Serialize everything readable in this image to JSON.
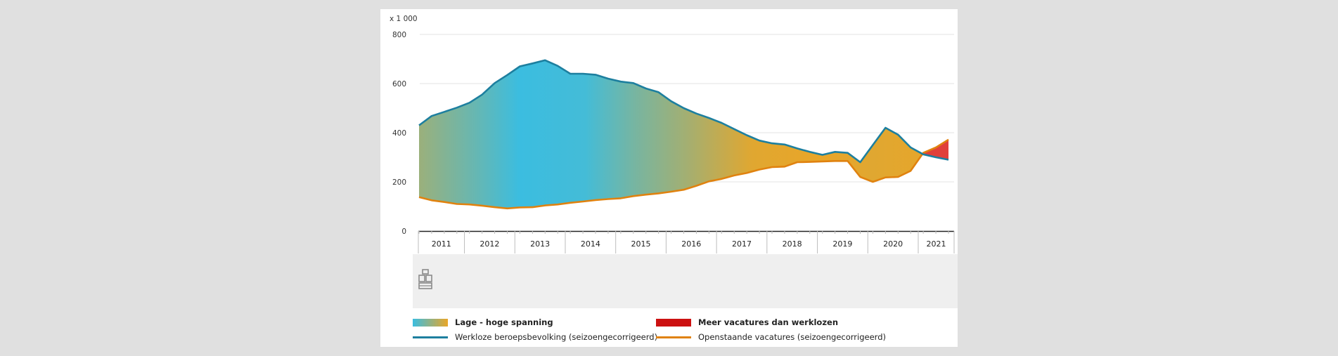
{
  "chart_data": {
    "type": "area",
    "unit_label": "x 1 000",
    "ylim": [
      0,
      800
    ],
    "yticks": [
      0,
      200,
      400,
      600,
      800
    ],
    "grid": true,
    "x_categories": [
      "2011",
      "2012",
      "2013",
      "2014",
      "2015",
      "2016",
      "2017",
      "2018",
      "2019",
      "2020",
      "2021"
    ],
    "x_start": 2011.0,
    "x_end": 2021.5,
    "series": [
      {
        "name": "Werkloze beroepsbevolking (seizoengecorrigeerd)",
        "color": "#1d7f9f",
        "points": [
          [
            2011.0,
            430
          ],
          [
            2011.25,
            468
          ],
          [
            2011.5,
            485
          ],
          [
            2011.75,
            502
          ],
          [
            2012.0,
            522
          ],
          [
            2012.25,
            555
          ],
          [
            2012.5,
            602
          ],
          [
            2012.75,
            635
          ],
          [
            2013.0,
            670
          ],
          [
            2013.25,
            682
          ],
          [
            2013.5,
            695
          ],
          [
            2013.75,
            672
          ],
          [
            2014.0,
            640
          ],
          [
            2014.25,
            640
          ],
          [
            2014.5,
            636
          ],
          [
            2014.75,
            620
          ],
          [
            2015.0,
            608
          ],
          [
            2015.25,
            602
          ],
          [
            2015.5,
            580
          ],
          [
            2015.75,
            565
          ],
          [
            2016.0,
            528
          ],
          [
            2016.25,
            500
          ],
          [
            2016.5,
            478
          ],
          [
            2016.75,
            460
          ],
          [
            2017.0,
            440
          ],
          [
            2017.25,
            415
          ],
          [
            2017.5,
            390
          ],
          [
            2017.75,
            368
          ],
          [
            2018.0,
            357
          ],
          [
            2018.25,
            352
          ],
          [
            2018.5,
            336
          ],
          [
            2018.75,
            322
          ],
          [
            2019.0,
            310
          ],
          [
            2019.25,
            322
          ],
          [
            2019.5,
            318
          ],
          [
            2019.75,
            280
          ],
          [
            2020.0,
            350
          ],
          [
            2020.25,
            420
          ],
          [
            2020.5,
            392
          ],
          [
            2020.75,
            340
          ],
          [
            2021.0,
            312
          ],
          [
            2021.25,
            300
          ],
          [
            2021.5,
            290
          ]
        ]
      },
      {
        "name": "Openstaande vacatures (seizoengecorrigeerd)",
        "color": "#e0820f",
        "points": [
          [
            2011.0,
            138
          ],
          [
            2011.25,
            125
          ],
          [
            2011.5,
            118
          ],
          [
            2011.75,
            110
          ],
          [
            2012.0,
            108
          ],
          [
            2012.25,
            103
          ],
          [
            2012.5,
            97
          ],
          [
            2012.75,
            92
          ],
          [
            2013.0,
            96
          ],
          [
            2013.25,
            97
          ],
          [
            2013.5,
            104
          ],
          [
            2013.75,
            108
          ],
          [
            2014.0,
            115
          ],
          [
            2014.25,
            120
          ],
          [
            2014.5,
            126
          ],
          [
            2014.75,
            130
          ],
          [
            2015.0,
            133
          ],
          [
            2015.25,
            142
          ],
          [
            2015.5,
            148
          ],
          [
            2015.75,
            153
          ],
          [
            2016.0,
            160
          ],
          [
            2016.25,
            168
          ],
          [
            2016.5,
            184
          ],
          [
            2016.75,
            202
          ],
          [
            2017.0,
            212
          ],
          [
            2017.25,
            226
          ],
          [
            2017.5,
            236
          ],
          [
            2017.75,
            250
          ],
          [
            2018.0,
            260
          ],
          [
            2018.25,
            262
          ],
          [
            2018.5,
            280
          ],
          [
            2018.75,
            281
          ],
          [
            2019.0,
            283
          ],
          [
            2019.25,
            285
          ],
          [
            2019.5,
            285
          ],
          [
            2019.75,
            220
          ],
          [
            2020.0,
            200
          ],
          [
            2020.25,
            218
          ],
          [
            2020.5,
            220
          ],
          [
            2020.75,
            245
          ],
          [
            2021.0,
            318
          ],
          [
            2021.25,
            340
          ],
          [
            2021.5,
            372
          ]
        ]
      }
    ],
    "fill_gradient": {
      "low_color": "#3bbde0",
      "high_color": "#e9a628",
      "stops": [
        [
          2011.0,
          0.55
        ],
        [
          2012.3,
          0.2
        ],
        [
          2013.0,
          0.0
        ],
        [
          2014.3,
          0.05
        ],
        [
          2015.3,
          0.35
        ],
        [
          2016.3,
          0.6
        ],
        [
          2017.6,
          0.95
        ],
        [
          2019.0,
          1.0
        ],
        [
          2020.0,
          0.95
        ],
        [
          2021.5,
          1.0
        ]
      ],
      "reversed_color": "#e0403a"
    }
  },
  "legend": [
    {
      "label": "Lage - hoge spanning",
      "kind": "gradient",
      "bold": true
    },
    {
      "label": "Meer vacatures dan werklozen",
      "kind": "red",
      "color": "#cc1111",
      "bold": true
    },
    {
      "label": "Werkloze beroepsbevolking (seizoengecorrigeerd)",
      "kind": "line",
      "color": "#1d7f9f",
      "bold": false
    },
    {
      "label": "Openstaande vacatures (seizoengecorrigeerd)",
      "kind": "line",
      "color": "#e0820f",
      "bold": false
    }
  ],
  "logo_icon": "cbs-logo-icon"
}
